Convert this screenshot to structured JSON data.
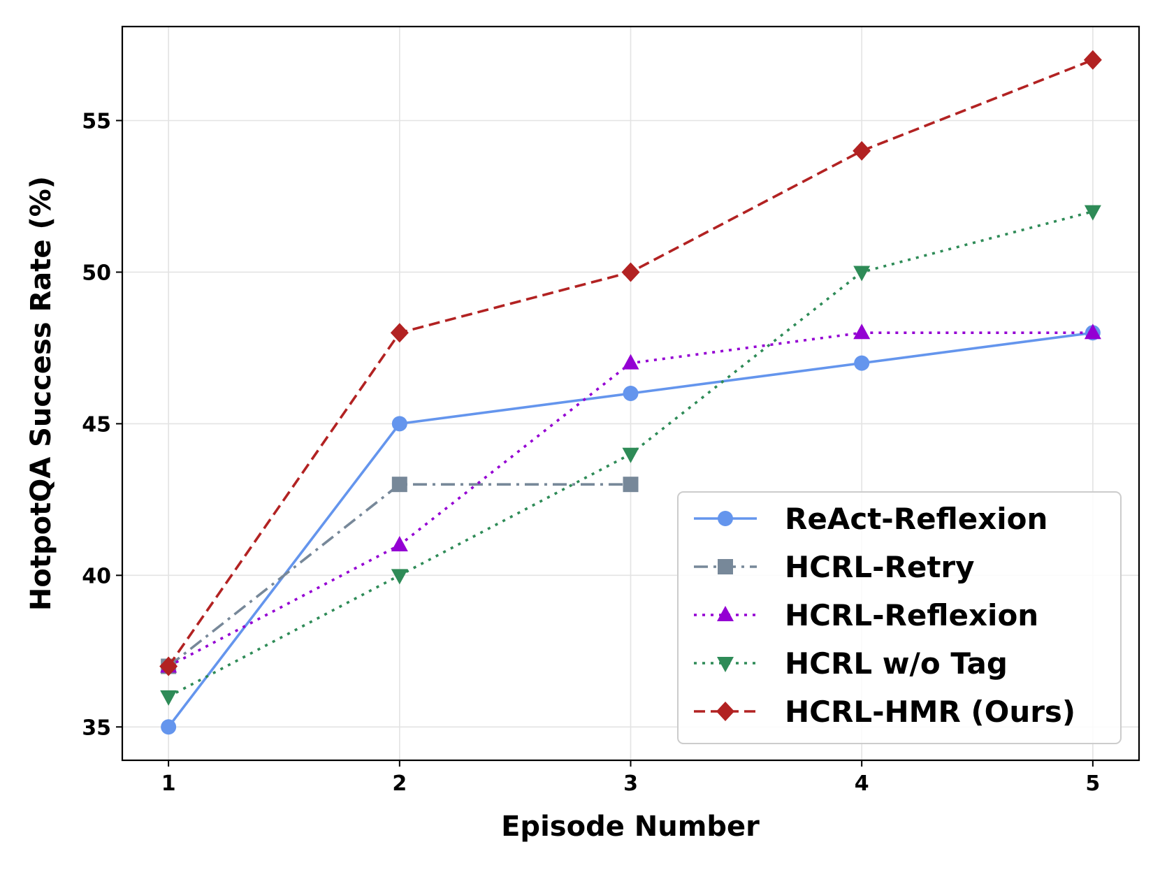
{
  "chart_data": {
    "type": "line",
    "xlabel": "Episode Number",
    "ylabel": "HotpotQA Success Rate (%)",
    "x": [
      1,
      2,
      3,
      4,
      5
    ],
    "xlim": [
      0.8,
      5.2
    ],
    "ylim": [
      33.9,
      58.1
    ],
    "xticks": [
      "1",
      "2",
      "3",
      "4",
      "5"
    ],
    "yticks": [
      "35",
      "40",
      "45",
      "50",
      "55"
    ],
    "grid": true,
    "legend_position": "lower-right",
    "series": [
      {
        "name": "ReAct-Reflexion",
        "x": [
          1,
          2,
          3,
          4,
          5
        ],
        "values": [
          35,
          45,
          46,
          47,
          48
        ],
        "color": "#6495ED",
        "linestyle": "solid",
        "marker": "circle"
      },
      {
        "name": "HCRL-Retry",
        "x": [
          1,
          2,
          3
        ],
        "values": [
          37,
          43,
          43
        ],
        "color": "#778899",
        "linestyle": "dashdot",
        "marker": "square"
      },
      {
        "name": "HCRL-Reflexion",
        "x": [
          1,
          2,
          3,
          4,
          5
        ],
        "values": [
          37,
          41,
          47,
          48,
          48
        ],
        "color": "#9400D3",
        "linestyle": "dotted",
        "marker": "triangle-up"
      },
      {
        "name": "HCRL w/o Tag",
        "x": [
          1,
          2,
          3,
          4,
          5
        ],
        "values": [
          36,
          40,
          44,
          50,
          52
        ],
        "color": "#2E8B57",
        "linestyle": "dotted",
        "marker": "triangle-down"
      },
      {
        "name": "HCRL-HMR (Ours)",
        "x": [
          1,
          2,
          3,
          4,
          5
        ],
        "values": [
          37,
          48,
          50,
          54,
          57
        ],
        "color": "#B22222",
        "linestyle": "dashed",
        "marker": "diamond"
      }
    ]
  }
}
